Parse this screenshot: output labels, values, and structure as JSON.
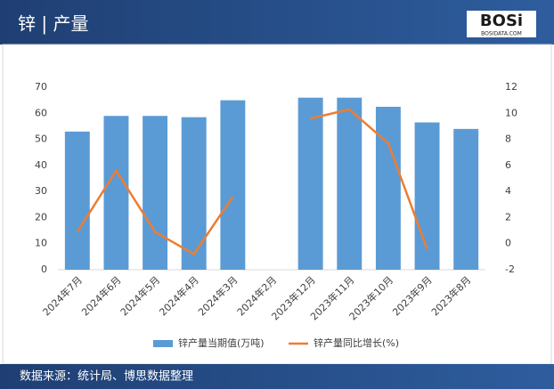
{
  "header": {
    "title": "锌 | 产量",
    "logo": "BOSi",
    "logo_sub": "BOSIDATA.COM"
  },
  "chart_data": {
    "type": "bar-line",
    "categories": [
      "2024年7月",
      "2024年6月",
      "2024年5月",
      "2024年4月",
      "2024年3月",
      "2024年2月",
      "2023年12月",
      "2023年11月",
      "2023年10月",
      "2023年9月",
      "2023年8月"
    ],
    "series": [
      {
        "name": "锌产量当期值(万吨)",
        "type": "bar",
        "color": "#5b9bd5",
        "values": [
          53,
          59,
          59,
          58.5,
          65,
          null,
          66,
          66,
          62.5,
          56.5,
          54
        ]
      },
      {
        "name": "锌产量同比增长(%)",
        "type": "line",
        "axis": "y2",
        "color": "#ed7d31",
        "values": [
          0.9,
          5.6,
          0.9,
          -0.8,
          3.6,
          null,
          9.6,
          10.3,
          7.7,
          -0.4,
          null
        ]
      }
    ],
    "ylim": [
      0,
      70
    ],
    "yticks": [
      0,
      10,
      20,
      30,
      40,
      50,
      60,
      70
    ],
    "y2lim": [
      -2,
      12
    ],
    "y2ticks": [
      -2,
      0,
      2,
      4,
      6,
      8,
      10,
      12
    ],
    "grid": false,
    "legend": "bottom"
  },
  "footer": {
    "source": "数据来源：统计局、博思数据整理"
  }
}
